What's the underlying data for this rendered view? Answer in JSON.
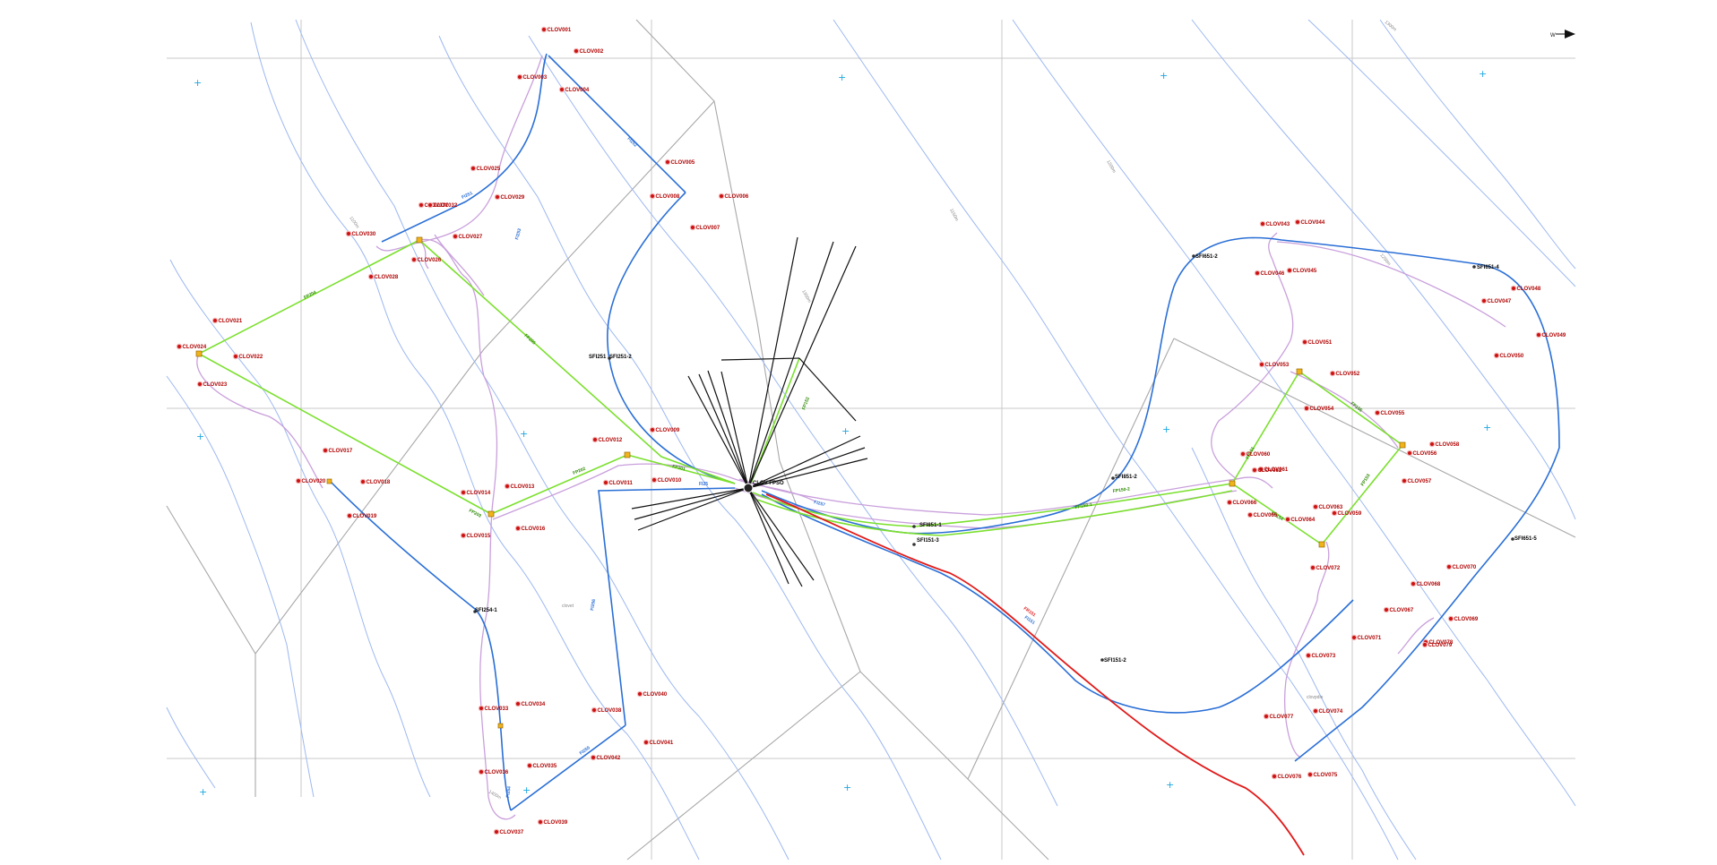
{
  "map": {
    "colors": {
      "background": "#ffffff",
      "block_boundary": "#a8a8a8",
      "contour": "#9db8f0",
      "flexible_flowline": "#2a6fd6",
      "production_line": "#7be02e",
      "umbilical": "#c9a0dc",
      "riser_red": "#e01b1b",
      "well_marker": "#cc1111",
      "well_label": "#b00000",
      "node_label": "#000000",
      "grid_cross": "#1ea7e1",
      "anchor_lines": "#111111"
    },
    "compass_icon": "north-arrow-icon",
    "center_label": "CLOV FPSO",
    "node_labels": [
      {
        "id": "SFI251-2",
        "text": "SFI251-2"
      },
      {
        "id": "SFI251",
        "text": "SFI251"
      },
      {
        "id": "SFI254-1",
        "text": "SFI254-1"
      },
      {
        "id": "SFI651-2",
        "text": "SFI651-2"
      },
      {
        "id": "SFI651-4",
        "text": "SFI651-4"
      },
      {
        "id": "SFI651-5",
        "text": "SFI651-5"
      },
      {
        "id": "SFI851-2",
        "text": "SFI851-2"
      },
      {
        "id": "SFI851-1",
        "text": "SFI851-1"
      },
      {
        "id": "SFI151-3",
        "text": "SFI151-3"
      },
      {
        "id": "SFI151-2",
        "text": "SFI151-2"
      }
    ],
    "line_labels": [
      {
        "id": "FP204",
        "text": "FP204"
      },
      {
        "id": "FP205",
        "text": "FP205"
      },
      {
        "id": "FP203",
        "text": "FP203"
      },
      {
        "id": "FP202",
        "text": "FP202"
      },
      {
        "id": "FP201",
        "text": "FP201"
      },
      {
        "id": "FI251",
        "text": "FI251"
      },
      {
        "id": "FI253",
        "text": "FI253"
      },
      {
        "id": "FI252",
        "text": "FI252"
      },
      {
        "id": "FI25",
        "text": "FI25"
      },
      {
        "id": "FI254",
        "text": "FI254"
      },
      {
        "id": "FI255",
        "text": "FI255"
      },
      {
        "id": "FI256",
        "text": "FI256"
      },
      {
        "id": "FI257",
        "text": "FI257"
      },
      {
        "id": "FP151",
        "text": "FP151"
      },
      {
        "id": "FP153",
        "text": "FP153"
      },
      {
        "id": "FP154",
        "text": "FP154"
      },
      {
        "id": "FP155",
        "text": "FP155"
      },
      {
        "id": "FP150-1",
        "text": "FP150-1"
      },
      {
        "id": "FP150-2",
        "text": "FP150-2"
      },
      {
        "id": "FP152",
        "text": "FP152"
      },
      {
        "id": "FI151",
        "text": "FI151"
      },
      {
        "id": "FR151",
        "text": "FR151"
      }
    ],
    "contour_labels": [
      {
        "id": "c1",
        "text": "1100m"
      },
      {
        "id": "c2",
        "text": "1150m"
      },
      {
        "id": "c3",
        "text": "1200m"
      },
      {
        "id": "c4",
        "text": "1250m"
      },
      {
        "id": "c5",
        "text": "1300m"
      },
      {
        "id": "c6",
        "text": "1350m"
      },
      {
        "id": "c7",
        "text": "1400m"
      }
    ],
    "faint_labels": [
      {
        "id": "f1",
        "text": "clovet"
      },
      {
        "id": "f2",
        "text": "clovpdie"
      },
      {
        "id": "f3",
        "text": "1100m"
      }
    ],
    "wells": [
      "CLOV001",
      "CLOV002",
      "CLOV003",
      "CLOV004",
      "CLOV005",
      "CLOV006",
      "CLOV007",
      "CLOV008",
      "CLOV009",
      "CLOV010",
      "CLOV011",
      "CLOV012",
      "CLOV013",
      "CLOV014",
      "CLOV015",
      "CLOV016",
      "CLOV017",
      "CLOV018",
      "CLOV019",
      "CLOV020",
      "CLOV021",
      "CLOV022",
      "CLOV023",
      "CLOV024",
      "CLOV025",
      "CLOV026",
      "CLOV027",
      "CLOV028",
      "CLOV029",
      "CLOV030",
      "CLOV031",
      "CLOV032",
      "CLOV033",
      "CLOV034",
      "CLOV035",
      "CLOV036",
      "CLOV037",
      "CLOV038",
      "CLOV039",
      "CLOV040",
      "CLOV041",
      "CLOV042",
      "CLOV043",
      "CLOV044",
      "CLOV045",
      "CLOV046",
      "CLOV047",
      "CLOV048",
      "CLOV049",
      "CLOV050",
      "CLOV051",
      "CLOV052",
      "CLOV053",
      "CLOV054",
      "CLOV055",
      "CLOV056",
      "CLOV057",
      "CLOV058",
      "CLOV059",
      "CLOV060",
      "CLOV061",
      "CLOV062",
      "CLOV063",
      "CLOV064",
      "CLOV065",
      "CLOV066",
      "CLOV067",
      "CLOV068",
      "CLOV069",
      "CLOV070",
      "CLOV071",
      "CLOV072",
      "CLOV073",
      "CLOV074",
      "CLOV075",
      "CLOV076",
      "CLOV077",
      "CLOV078",
      "CLOV079"
    ]
  }
}
